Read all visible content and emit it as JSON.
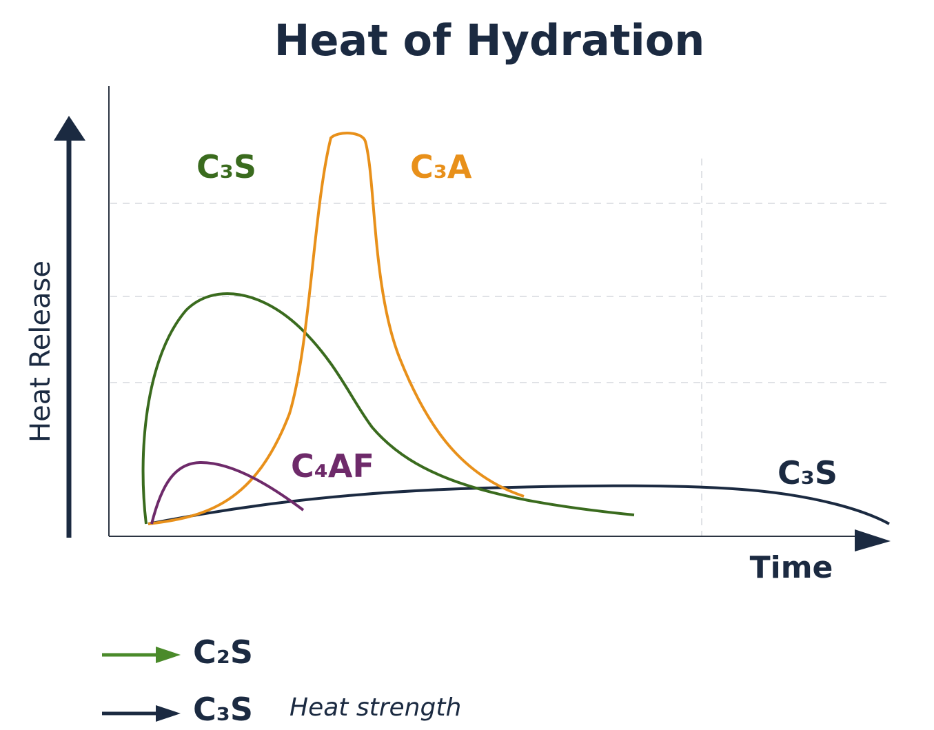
{
  "title": "Heat of Hydration",
  "y_axis_label": "Heat Release",
  "x_axis_label": "Time",
  "curve_labels": [
    "C₃S",
    "C₃A",
    "C₄AF",
    "C₃S"
  ],
  "legend": [
    {
      "label": "C₂S"
    },
    {
      "label": "C₃S",
      "note": "Heat strength"
    }
  ]
}
